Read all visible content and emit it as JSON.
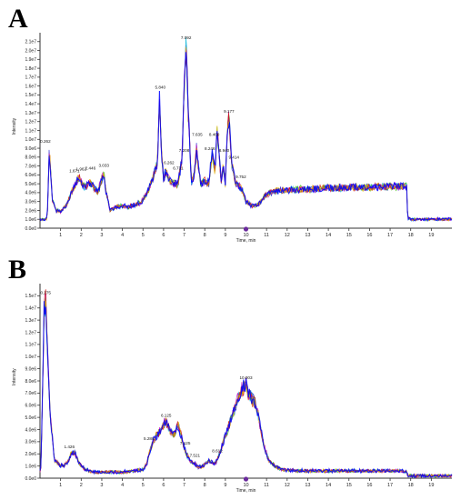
{
  "panels": [
    {
      "letter": "A"
    },
    {
      "letter": "B"
    }
  ],
  "chart_data": [
    {
      "type": "line",
      "panel": "A",
      "xlabel": "Time, min",
      "ylabel": "Intensity",
      "xlim": [
        0,
        20
      ],
      "ylim": [
        0,
        22000000.0
      ],
      "x_ticks": [
        1,
        2,
        3,
        4,
        5,
        6,
        7,
        8,
        9,
        10,
        11,
        12,
        13,
        14,
        15,
        16,
        17,
        18,
        19
      ],
      "y_ticks": [
        {
          "v": 0,
          "label": "0.0e0"
        },
        {
          "v": 1000000.0,
          "label": "1.0e6"
        },
        {
          "v": 2000000.0,
          "label": "2.0e6"
        },
        {
          "v": 3000000.0,
          "label": "3.0e6"
        },
        {
          "v": 4000000.0,
          "label": "4.0e6"
        },
        {
          "v": 5000000.0,
          "label": "5.0e6"
        },
        {
          "v": 6000000.0,
          "label": "6.0e6"
        },
        {
          "v": 7000000.0,
          "label": "7.0e6"
        },
        {
          "v": 8000000.0,
          "label": "8.0e6"
        },
        {
          "v": 9000000.0,
          "label": "9.0e6"
        },
        {
          "v": 10000000.0,
          "label": "1.0e7"
        },
        {
          "v": 11000000.0,
          "label": "1.1e7"
        },
        {
          "v": 12000000.0,
          "label": "1.2e7"
        },
        {
          "v": 13000000.0,
          "label": "1.3e7"
        },
        {
          "v": 14000000.0,
          "label": "1.4e7"
        },
        {
          "v": 15000000.0,
          "label": "1.5e7"
        },
        {
          "v": 16000000.0,
          "label": "1.6e7"
        },
        {
          "v": 17000000.0,
          "label": "1.7e7"
        },
        {
          "v": 18000000.0,
          "label": "1.8e7"
        },
        {
          "v": 19000000.0,
          "label": "1.9e7"
        },
        {
          "v": 20000000.0,
          "label": "2.0e7"
        },
        {
          "v": 21000000.0,
          "label": "2.1e7"
        }
      ],
      "series_colors": [
        "#1a1acc",
        "#00b4d8",
        "#39c000",
        "#c000c0",
        "#d01010",
        "#e0b000",
        "#0000ff"
      ],
      "x": [
        0.0,
        0.2,
        0.35,
        0.45,
        0.6,
        0.8,
        1.0,
        1.3,
        1.6,
        1.8,
        1.9,
        2.0,
        2.2,
        2.4,
        2.6,
        2.8,
        3.0,
        3.1,
        3.2,
        3.4,
        3.7,
        4.0,
        4.3,
        4.6,
        4.9,
        5.1,
        5.3,
        5.5,
        5.7,
        5.8,
        5.9,
        6.0,
        6.1,
        6.3,
        6.5,
        6.7,
        6.9,
        7.0,
        7.1,
        7.2,
        7.35,
        7.5,
        7.6,
        7.7,
        7.8,
        8.0,
        8.2,
        8.35,
        8.5,
        8.6,
        8.7,
        8.8,
        8.9,
        9.0,
        9.1,
        9.18,
        9.3,
        9.4,
        9.5,
        9.6,
        9.7,
        9.8,
        10.0,
        10.3,
        10.6,
        10.9,
        11.2,
        11.5,
        12.0,
        13.0,
        14.0,
        15.0,
        16.0,
        17.0,
        17.8,
        17.85,
        18.0,
        19.0,
        20.0
      ],
      "y": [
        1000000.0,
        1000000.0,
        1100000.0,
        8900000.0,
        3200000.0,
        2000000.0,
        1900000.0,
        2600000.0,
        4400000.0,
        5400000.0,
        5800000.0,
        5200000.0,
        4600000.0,
        5200000.0,
        4700000.0,
        4000000.0,
        5500000.0,
        6200000.0,
        4200000.0,
        2000000.0,
        2400000.0,
        2500000.0,
        2400000.0,
        2600000.0,
        2900000.0,
        3600000.0,
        4500000.0,
        5800000.0,
        7200000.0,
        14700000.0,
        8500000.0,
        5500000.0,
        6400000.0,
        5300000.0,
        5100000.0,
        4900000.0,
        8000000.0,
        16000000.0,
        21000000.0,
        13000000.0,
        5200000.0,
        6100000.0,
        9000000.0,
        6800000.0,
        4900000.0,
        5300000.0,
        5000000.0,
        8400000.0,
        6400000.0,
        11200000.0,
        8200000.0,
        5200000.0,
        7000000.0,
        4900000.0,
        11500000.0,
        12500000.0,
        7600000.0,
        6100000.0,
        5100000.0,
        4800000.0,
        4700000.0,
        4400000.0,
        3000000.0,
        2500000.0,
        2600000.0,
        3600000.0,
        4000000.0,
        4200000.0,
        4300000.0,
        4400000.0,
        4500000.0,
        4600000.0,
        4600000.0,
        4700000.0,
        4700000.0,
        1200000.0,
        1000000.0,
        1000000.0,
        1000000.0
      ],
      "peak_labels": [
        {
          "x": 0.262,
          "y": 9400000.0,
          "label": "0.262"
        },
        {
          "x": 1.671,
          "y": 6100000.0,
          "label": "1.671"
        },
        {
          "x": 2.0,
          "y": 6300000.0,
          "label": "1.962"
        },
        {
          "x": 2.446,
          "y": 6400000.0,
          "label": "2.446"
        },
        {
          "x": 3.1,
          "y": 6700000.0,
          "label": "3.033"
        },
        {
          "x": 5.84,
          "y": 15500000.0,
          "label": "5.840"
        },
        {
          "x": 6.262,
          "y": 7000000.0,
          "label": "6.262"
        },
        {
          "x": 6.71,
          "y": 6400000.0,
          "label": "6.731"
        },
        {
          "x": 7.0,
          "y": 8400000.0,
          "label": "7.208"
        },
        {
          "x": 7.092,
          "y": 21100000.0,
          "label": "7.092"
        },
        {
          "x": 7.635,
          "y": 10200000.0,
          "label": "7.635"
        },
        {
          "x": 8.246,
          "y": 8600000.0,
          "label": "8.246"
        },
        {
          "x": 8.46,
          "y": 10200000.0,
          "label": "8.460"
        },
        {
          "x": 8.94,
          "y": 8400000.0,
          "label": "8.940"
        },
        {
          "x": 9.177,
          "y": 12800000.0,
          "label": "9.177"
        },
        {
          "x": 9.414,
          "y": 7600000.0,
          "label": "9.414"
        },
        {
          "x": 9.752,
          "y": 5400000.0,
          "label": "9.752"
        }
      ]
    },
    {
      "type": "line",
      "panel": "B",
      "xlabel": "Time, min",
      "ylabel": "Intensity",
      "xlim": [
        0,
        20
      ],
      "ylim": [
        0,
        16000000.0
      ],
      "x_ticks": [
        1,
        2,
        3,
        4,
        5,
        6,
        7,
        8,
        9,
        10,
        11,
        12,
        13,
        14,
        15,
        16,
        17,
        18,
        19
      ],
      "y_ticks": [
        {
          "v": 0,
          "label": "0.0e0"
        },
        {
          "v": 1000000.0,
          "label": "1.0e6"
        },
        {
          "v": 2000000.0,
          "label": "2.0e6"
        },
        {
          "v": 3000000.0,
          "label": "3.0e6"
        },
        {
          "v": 4000000.0,
          "label": "4.0e6"
        },
        {
          "v": 5000000.0,
          "label": "5.0e6"
        },
        {
          "v": 6000000.0,
          "label": "6.0e6"
        },
        {
          "v": 7000000.0,
          "label": "7.0e6"
        },
        {
          "v": 8000000.0,
          "label": "8.0e6"
        },
        {
          "v": 9000000.0,
          "label": "9.0e6"
        },
        {
          "v": 10000000.0,
          "label": "1.0e7"
        },
        {
          "v": 11000000.0,
          "label": "1.1e7"
        },
        {
          "v": 12000000.0,
          "label": "1.2e7"
        },
        {
          "v": 13000000.0,
          "label": "1.3e7"
        },
        {
          "v": 14000000.0,
          "label": "1.4e7"
        },
        {
          "v": 15000000.0,
          "label": "1.5e7"
        }
      ],
      "series_colors": [
        "#1a1acc",
        "#00b4d8",
        "#39c000",
        "#c000c0",
        "#d01010",
        "#e0b000",
        "#0000ff"
      ],
      "x": [
        0.0,
        0.05,
        0.1,
        0.2,
        0.275,
        0.35,
        0.5,
        0.7,
        1.0,
        1.2,
        1.4,
        1.5,
        1.7,
        1.9,
        2.2,
        2.6,
        3.0,
        4.0,
        5.0,
        5.2,
        5.3,
        5.5,
        5.7,
        5.9,
        6.1,
        6.3,
        6.5,
        6.7,
        6.9,
        7.0,
        7.1,
        7.3,
        7.5,
        7.7,
        7.9,
        8.2,
        8.5,
        8.7,
        8.9,
        9.1,
        9.3,
        9.5,
        9.7,
        9.9,
        10.0,
        10.1,
        10.3,
        10.5,
        10.7,
        10.9,
        11.1,
        11.4,
        11.8,
        12.5,
        14.0,
        16.0,
        17.5,
        17.8,
        17.85,
        18.0,
        20.0
      ],
      "y": [
        600000.0,
        1000000.0,
        5000000.0,
        13500000.0,
        14900000.0,
        11000000.0,
        5000000.0,
        1500000.0,
        1000000.0,
        1100000.0,
        1500000.0,
        2000000.0,
        2100000.0,
        1200000.0,
        700000.0,
        500000.0,
        500000.0,
        500000.0,
        700000.0,
        1200000.0,
        2100000.0,
        3000000.0,
        3600000.0,
        4100000.0,
        4700000.0,
        4000000.0,
        3500000.0,
        4400000.0,
        3200000.0,
        2600000.0,
        2000000.0,
        1400000.0,
        1200000.0,
        900000.0,
        1000000.0,
        1400000.0,
        1200000.0,
        1900000.0,
        3000000.0,
        4000000.0,
        5000000.0,
        6000000.0,
        7000000.0,
        7500000.0,
        7800000.0,
        7000000.0,
        6500000.0,
        6000000.0,
        4200000.0,
        2500000.0,
        1500000.0,
        1000000.0,
        700000.0,
        600000.0,
        600000.0,
        600000.0,
        600000.0,
        500000.0,
        200000.0,
        200000.0,
        200000.0
      ],
      "peak_labels": [
        {
          "x": 0.275,
          "y": 15000000.0,
          "label": "0.275"
        },
        {
          "x": 1.426,
          "y": 2300000.0,
          "label": "1.426"
        },
        {
          "x": 5.288,
          "y": 3000000.0,
          "label": "5.288"
        },
        {
          "x": 6.125,
          "y": 4900000.0,
          "label": "6.125"
        },
        {
          "x": 7.05,
          "y": 2600000.0,
          "label": "7.125"
        },
        {
          "x": 7.52,
          "y": 1600000.0,
          "label": "7.521"
        },
        {
          "x": 8.612,
          "y": 2000000.0,
          "label": "8.612"
        },
        {
          "x": 10.0,
          "y": 8000000.0,
          "label": "10.003"
        }
      ]
    }
  ]
}
